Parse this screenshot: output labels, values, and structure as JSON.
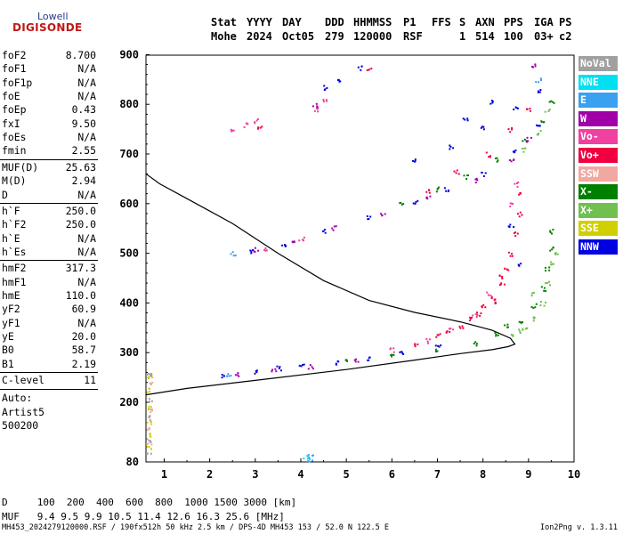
{
  "logo": {
    "top": "Lowell",
    "bottom": "DIGISONDE"
  },
  "header": {
    "labels": [
      "Stat",
      "YYYY",
      "DAY",
      "DDD",
      "HHMMSS",
      "P1",
      "FFS",
      "S",
      "AXN",
      "PPS",
      "IGA",
      "PS"
    ],
    "values": [
      "Mohe",
      "2024",
      "Oct05",
      "279",
      "120000",
      "RSF",
      "",
      "1",
      "514",
      "100",
      "03+",
      "c2"
    ]
  },
  "params": [
    {
      "k": "foF2",
      "v": "8.700"
    },
    {
      "k": "foF1",
      "v": "N/A"
    },
    {
      "k": "foF1p",
      "v": "N/A"
    },
    {
      "k": "foE",
      "v": "N/A"
    },
    {
      "k": "foEp",
      "v": "0.43"
    },
    {
      "k": "fxI",
      "v": "9.50"
    },
    {
      "k": "foEs",
      "v": "N/A"
    },
    {
      "k": "fmin",
      "v": "2.55"
    },
    {
      "k": "MUF(D)",
      "v": "25.63"
    },
    {
      "k": "M(D)",
      "v": "2.94"
    },
    {
      "k": "D",
      "v": "N/A"
    },
    {
      "k": "h`F",
      "v": "250.0"
    },
    {
      "k": "h`F2",
      "v": "250.0"
    },
    {
      "k": "h`E",
      "v": "N/A"
    },
    {
      "k": "h`Es",
      "v": "N/A"
    },
    {
      "k": "hmF2",
      "v": "317.3"
    },
    {
      "k": "hmF1",
      "v": "N/A"
    },
    {
      "k": "hmE",
      "v": "110.0"
    },
    {
      "k": "yF2",
      "v": "60.9"
    },
    {
      "k": "yF1",
      "v": "N/A"
    },
    {
      "k": "yE",
      "v": "20.0"
    },
    {
      "k": "B0",
      "v": "58.7"
    },
    {
      "k": "B1",
      "v": "2.19"
    },
    {
      "k": "C-level",
      "v": "11"
    }
  ],
  "auto": {
    "label": "Auto:",
    "artist": "Artist5",
    "version": "500200"
  },
  "legend": [
    {
      "label": "NoVal",
      "color": "#a0a0a0"
    },
    {
      "label": "NNE",
      "color": "#00e0f0"
    },
    {
      "label": "E",
      "color": "#3aa0f0"
    },
    {
      "label": "W",
      "color": "#a000a8"
    },
    {
      "label": "Vo-",
      "color": "#f040a0"
    },
    {
      "label": "Vo+",
      "color": "#f00040"
    },
    {
      "label": "SSW",
      "color": "#f0a8a0"
    },
    {
      "label": "X-",
      "color": "#008000"
    },
    {
      "label": "X+",
      "color": "#70c050"
    },
    {
      "label": "SSE",
      "color": "#d0d000"
    },
    {
      "label": "NNW",
      "color": "#0000e0"
    }
  ],
  "bottom_table": {
    "D_label": "D",
    "D_values": [
      "100",
      "200",
      "400",
      "600",
      "800",
      "1000",
      "1500",
      "3000"
    ],
    "D_unit": "[km]",
    "MUF_label": "MUF",
    "MUF_values": [
      "9.4",
      "9.5",
      "9.9",
      "10.5",
      "11.4",
      "12.6",
      "16.3",
      "25.6"
    ],
    "MUF_unit": "[MHz]"
  },
  "footer": "MH453_2024279120000.RSF / 190fx512h 50 kHz 2.5 km / DPS-4D MH453 153 / 52.0 N 122.5 E",
  "version": "Ion2Png v. 1.3.11",
  "chart_data": {
    "type": "scatter",
    "x_ticks": [
      "1",
      "2",
      "3",
      "4",
      "5",
      "6",
      "7",
      "8",
      "9",
      "10"
    ],
    "y_ticks": [
      "80",
      "200",
      "300",
      "400",
      "500",
      "600",
      "700",
      "800",
      "900"
    ],
    "xlim": [
      0.6,
      10
    ],
    "ylim": [
      80,
      900
    ],
    "x_unit": "MHz",
    "y_unit": "km",
    "profile": [
      [
        0.6,
        215
      ],
      [
        1.5,
        228
      ],
      [
        3,
        244
      ],
      [
        5,
        266
      ],
      [
        6.5,
        285
      ],
      [
        7.5,
        298
      ],
      [
        8.2,
        306
      ],
      [
        8.55,
        312
      ],
      [
        8.7,
        317
      ],
      [
        8.6,
        329
      ],
      [
        8.2,
        345
      ],
      [
        7.5,
        362
      ],
      [
        6.5,
        381
      ],
      [
        5.5,
        405
      ],
      [
        4.5,
        445
      ],
      [
        3.5,
        500
      ],
      [
        2.5,
        560
      ],
      [
        1.5,
        610
      ],
      [
        0.9,
        640
      ],
      [
        0.6,
        660
      ]
    ],
    "series": [
      {
        "name": "NNW",
        "color": "#0000e0",
        "points": [
          [
            2.3,
            255
          ],
          [
            3,
            262
          ],
          [
            3.5,
            270
          ],
          [
            4,
            275
          ],
          [
            4.8,
            282
          ],
          [
            5.5,
            290
          ],
          [
            6.2,
            300
          ],
          [
            7,
            315
          ],
          [
            2.9,
            505
          ],
          [
            3.6,
            520
          ],
          [
            4.5,
            545
          ],
          [
            5.5,
            575
          ],
          [
            6.5,
            605
          ],
          [
            7.2,
            630
          ],
          [
            8,
            660
          ],
          [
            8.7,
            705
          ],
          [
            9.2,
            755
          ],
          [
            6.5,
            690
          ],
          [
            7.3,
            715
          ],
          [
            8,
            755
          ],
          [
            8.7,
            795
          ],
          [
            9.2,
            830
          ],
          [
            4.5,
            835
          ],
          [
            4.8,
            850
          ],
          [
            5.3,
            875
          ],
          [
            8.6,
            555
          ],
          [
            8.8,
            480
          ],
          [
            7.6,
            770
          ],
          [
            8.2,
            805
          ]
        ]
      },
      {
        "name": "Vo+",
        "color": "#f00040",
        "points": [
          [
            6.5,
            315
          ],
          [
            7,
            335
          ],
          [
            7.5,
            355
          ],
          [
            7.9,
            380
          ],
          [
            8.2,
            410
          ],
          [
            8.4,
            440
          ],
          [
            8.5,
            470
          ],
          [
            8.6,
            500
          ],
          [
            8.7,
            540
          ],
          [
            8.8,
            580
          ],
          [
            8.8,
            620
          ],
          [
            6.8,
            625
          ],
          [
            7.4,
            665
          ],
          [
            8.1,
            700
          ],
          [
            8.6,
            750
          ],
          [
            9,
            790
          ],
          [
            8.4,
            455
          ],
          [
            8.3,
            400
          ],
          [
            7.2,
            345
          ],
          [
            7.7,
            370
          ],
          [
            8.0,
            395
          ],
          [
            5.5,
            870
          ],
          [
            3.1,
            755
          ]
        ]
      },
      {
        "name": "Vo-",
        "color": "#f040a0",
        "points": [
          [
            4.3,
            790
          ],
          [
            4.5,
            810
          ],
          [
            2.5,
            750
          ],
          [
            2.8,
            760
          ],
          [
            3,
            768
          ],
          [
            6,
            306
          ],
          [
            6.8,
            325
          ],
          [
            7.3,
            350
          ],
          [
            7.8,
            375
          ],
          [
            8.1,
            420
          ],
          [
            8.6,
            600
          ],
          [
            8.7,
            640
          ],
          [
            3.2,
            510
          ],
          [
            4,
            530
          ]
        ]
      },
      {
        "name": "X-",
        "color": "#008000",
        "points": [
          [
            5,
            284
          ],
          [
            6,
            294
          ],
          [
            7,
            305
          ],
          [
            7.8,
            320
          ],
          [
            8.3,
            338
          ],
          [
            8.8,
            365
          ],
          [
            9.1,
            395
          ],
          [
            9.3,
            430
          ],
          [
            9.4,
            470
          ],
          [
            9.5,
            510
          ],
          [
            9.5,
            545
          ],
          [
            6.2,
            600
          ],
          [
            7,
            630
          ],
          [
            7.6,
            655
          ],
          [
            8.3,
            690
          ],
          [
            8.9,
            730
          ],
          [
            9.3,
            770
          ],
          [
            9.5,
            805
          ],
          [
            8.5,
            355
          ]
        ]
      },
      {
        "name": "X+",
        "color": "#70c050",
        "points": [
          [
            8.6,
            335
          ],
          [
            8.9,
            350
          ],
          [
            9.1,
            370
          ],
          [
            9.3,
            400
          ],
          [
            9.4,
            440
          ],
          [
            9.5,
            480
          ],
          [
            9.6,
            500
          ],
          [
            8.9,
            710
          ],
          [
            9.2,
            745
          ],
          [
            9.4,
            790
          ],
          [
            9.1,
            420
          ],
          [
            8.8,
            345
          ]
        ]
      },
      {
        "name": "W",
        "color": "#a000a8",
        "points": [
          [
            2.6,
            258
          ],
          [
            3.4,
            265
          ],
          [
            4.2,
            273
          ],
          [
            5.2,
            286
          ],
          [
            3,
            508
          ],
          [
            3.8,
            528
          ],
          [
            4.7,
            552
          ],
          [
            5.8,
            582
          ],
          [
            6.8,
            612
          ],
          [
            7.8,
            648
          ],
          [
            8.6,
            690
          ],
          [
            9,
            730
          ],
          [
            9.1,
            880
          ],
          [
            4.3,
            800
          ]
        ]
      },
      {
        "name": "E",
        "color": "#3aa0f0",
        "points": [
          [
            2.4,
            255
          ],
          [
            2.5,
            500
          ],
          [
            4.2,
            92
          ],
          [
            4.2,
            85
          ],
          [
            9.2,
            850
          ]
        ]
      },
      {
        "name": "SSE",
        "color": "#d0d000",
        "points": [
          [
            0.65,
            110
          ],
          [
            0.65,
            135
          ],
          [
            0.65,
            160
          ],
          [
            0.65,
            190
          ],
          [
            0.65,
            225
          ],
          [
            0.68,
            250
          ]
        ]
      },
      {
        "name": "SSW",
        "color": "#f0a8a0",
        "points": [
          [
            0.65,
            115
          ],
          [
            0.65,
            150
          ],
          [
            0.66,
            185
          ],
          [
            0.67,
            240
          ]
        ]
      },
      {
        "name": "NoVal",
        "color": "#a0a0a0",
        "points": [
          [
            0.65,
            95
          ],
          [
            0.65,
            125
          ],
          [
            0.65,
            170
          ],
          [
            0.66,
            205
          ],
          [
            0.66,
            255
          ],
          [
            0.65,
            260
          ]
        ]
      },
      {
        "name": "NNE",
        "color": "#00e0f0",
        "points": [
          [
            4.1,
            90
          ]
        ]
      }
    ]
  }
}
